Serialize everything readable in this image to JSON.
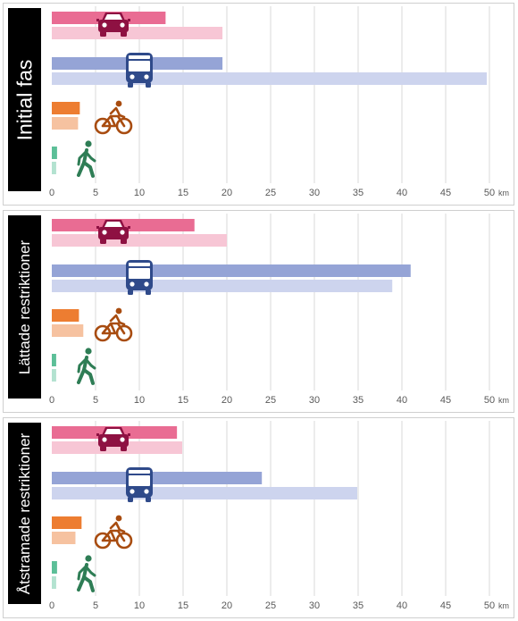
{
  "units": {
    "km": "km"
  },
  "colors": {
    "car": [
      "#e96c93",
      "#f7c6d5"
    ],
    "bus": [
      "#95a4d6",
      "#cdd4ee"
    ],
    "bike": [
      "#ed7d31",
      "#f6c2a0"
    ],
    "walk": [
      "#5cbf98",
      "#b3e2d0"
    ],
    "icon_car": "#8e1142",
    "icon_bus": "#2f4a8a",
    "icon_bike": "#a84c10",
    "icon_walk": "#2e7d55",
    "grid": "#d9d9d9",
    "label_bg": "#000000"
  },
  "icons": [
    "car-icon",
    "bus-icon",
    "bicycle-icon",
    "walking-person-icon"
  ],
  "chart_data": [
    {
      "type": "bar",
      "orientation": "horizontal",
      "title": "Initial fas",
      "categories": [
        "car",
        "bus",
        "bicycle",
        "walking"
      ],
      "series": [
        {
          "values": [
            13.0,
            19.5,
            3.2,
            0.6
          ]
        },
        {
          "values": [
            19.5,
            49.7,
            3.0,
            0.5
          ]
        }
      ],
      "xlim": [
        0,
        50
      ],
      "xticks": [
        "0",
        "5",
        "10",
        "15",
        "20",
        "25",
        "30",
        "35",
        "40",
        "45",
        "50"
      ],
      "grid": true
    },
    {
      "type": "bar",
      "orientation": "horizontal",
      "title": "Lättade restriktioner",
      "categories": [
        "car",
        "bus",
        "bicycle",
        "walking"
      ],
      "series": [
        {
          "values": [
            16.3,
            41.0,
            3.1,
            0.5
          ]
        },
        {
          "values": [
            20.0,
            38.9,
            3.6,
            0.5
          ]
        }
      ],
      "xlim": [
        0,
        50
      ],
      "xticks": [
        "0",
        "5",
        "10",
        "15",
        "20",
        "25",
        "30",
        "35",
        "40",
        "45",
        "50"
      ],
      "grid": true
    },
    {
      "type": "bar",
      "orientation": "horizontal",
      "title": "Åtstramade restriktioner",
      "categories": [
        "car",
        "bus",
        "bicycle",
        "walking"
      ],
      "series": [
        {
          "values": [
            14.3,
            24.0,
            3.4,
            0.6
          ]
        },
        {
          "values": [
            14.9,
            34.9,
            2.7,
            0.5
          ]
        }
      ],
      "xlim": [
        0,
        50
      ],
      "xticks": [
        "0",
        "5",
        "10",
        "15",
        "20",
        "25",
        "30",
        "35",
        "40",
        "45",
        "50"
      ],
      "grid": true
    }
  ]
}
